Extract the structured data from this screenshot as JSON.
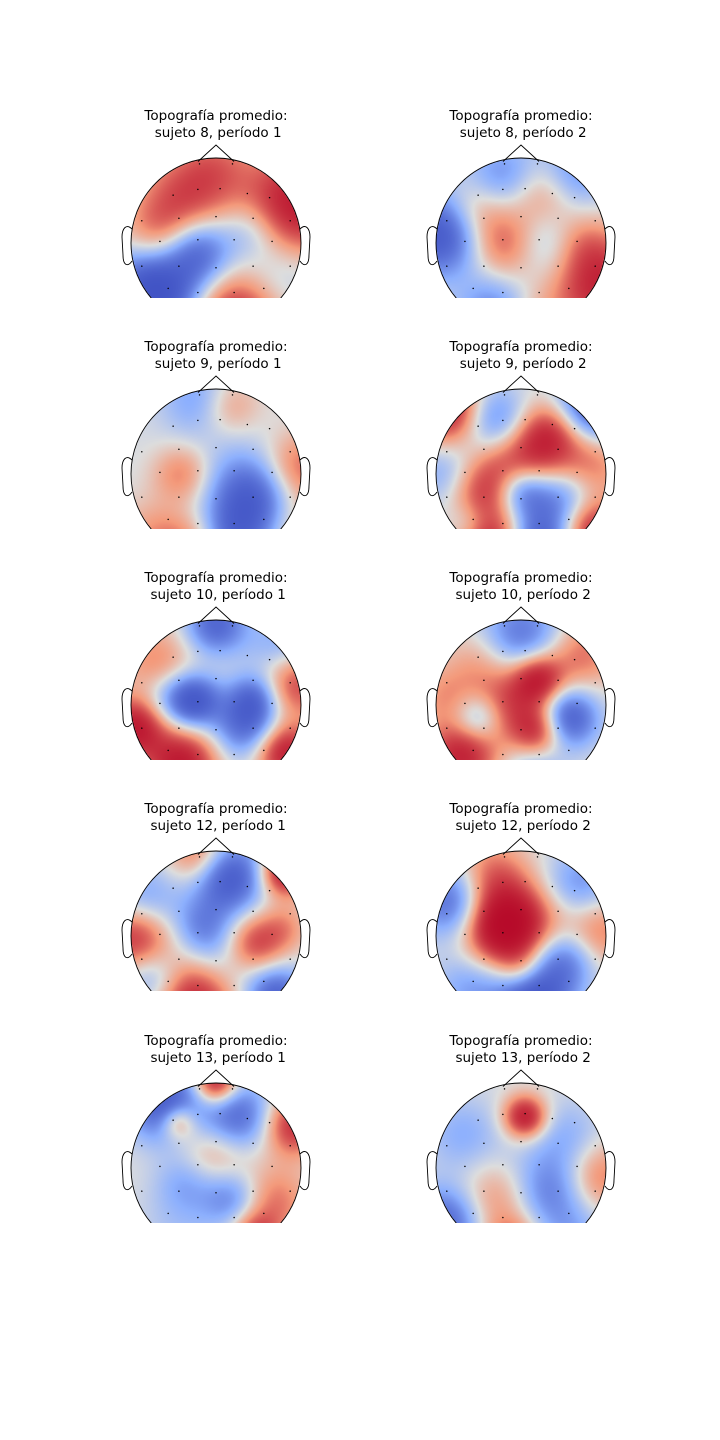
{
  "chart_data": [
    {
      "type": "heatmap",
      "title_line1": "Topografía promedio:",
      "title_line2": "sujeto 8, período 1",
      "blobs": [
        [
          0.95,
          -0.45,
          0.45,
          1.0
        ],
        [
          -0.35,
          -0.55,
          0.38,
          0.6
        ],
        [
          0.0,
          -0.95,
          0.3,
          0.3
        ],
        [
          -0.2,
          0.1,
          0.28,
          -0.8
        ],
        [
          -0.9,
          0.45,
          0.32,
          -0.5
        ],
        [
          -0.6,
          0.65,
          0.35,
          -0.95
        ],
        [
          0.2,
          0.9,
          0.4,
          0.9
        ],
        [
          0.4,
          -0.15,
          0.25,
          -0.35
        ],
        [
          -0.7,
          -0.1,
          0.3,
          0.4
        ],
        [
          0.75,
          0.35,
          0.35,
          -0.3
        ]
      ]
    },
    {
      "type": "heatmap",
      "title_line1": "Topografía promedio:",
      "title_line2": "sujeto 8, período 2",
      "blobs": [
        [
          -0.95,
          -0.1,
          0.35,
          -1.0
        ],
        [
          0.95,
          0.5,
          0.4,
          0.9
        ],
        [
          -0.2,
          0.0,
          0.3,
          0.6
        ],
        [
          0.3,
          -0.6,
          0.3,
          0.5
        ],
        [
          0.6,
          -0.8,
          0.3,
          -0.6
        ],
        [
          -0.2,
          -0.8,
          0.3,
          -0.5
        ],
        [
          0.3,
          0.0,
          0.3,
          -0.4
        ],
        [
          -0.3,
          0.8,
          0.3,
          -0.6
        ],
        [
          0.1,
          0.95,
          0.3,
          0.3
        ],
        [
          -0.55,
          -0.4,
          0.25,
          0.35
        ],
        [
          0.7,
          0.0,
          0.25,
          0.3
        ]
      ]
    },
    {
      "type": "heatmap",
      "title_line1": "Topografía promedio:",
      "title_line2": "sujeto 9, período 1",
      "blobs": [
        [
          0.45,
          0.3,
          0.35,
          -0.9
        ],
        [
          -0.4,
          0.0,
          0.25,
          0.5
        ],
        [
          0.15,
          -0.8,
          0.25,
          0.4
        ],
        [
          0.2,
          0.8,
          0.28,
          -0.6
        ],
        [
          -0.3,
          0.9,
          0.3,
          0.5
        ],
        [
          0.95,
          -0.05,
          0.3,
          0.6
        ],
        [
          -0.2,
          -0.9,
          0.3,
          -0.4
        ],
        [
          0.9,
          0.6,
          0.3,
          0.3
        ],
        [
          0.0,
          0.0,
          0.6,
          -0.15
        ],
        [
          -0.75,
          0.7,
          0.3,
          0.3
        ]
      ]
    },
    {
      "type": "heatmap",
      "title_line1": "Topografía promedio:",
      "title_line2": "sujeto 9, período 2",
      "blobs": [
        [
          -0.85,
          -0.75,
          0.3,
          1.0
        ],
        [
          0.85,
          -0.8,
          0.3,
          -1.0
        ],
        [
          -0.3,
          -0.6,
          0.3,
          -0.9
        ],
        [
          0.0,
          -0.2,
          0.4,
          0.9
        ],
        [
          0.0,
          0.2,
          0.22,
          -0.8
        ],
        [
          0.5,
          0.3,
          0.3,
          -0.8
        ],
        [
          0.8,
          0.65,
          0.28,
          1.0
        ],
        [
          0.2,
          0.85,
          0.3,
          -1.0
        ],
        [
          -0.35,
          0.85,
          0.3,
          1.0
        ],
        [
          -0.5,
          0.2,
          0.3,
          0.6
        ],
        [
          0.8,
          -0.1,
          0.3,
          0.5
        ],
        [
          -0.85,
          0.0,
          0.3,
          -0.5
        ],
        [
          0.35,
          -0.5,
          0.25,
          0.5
        ],
        [
          -0.6,
          0.6,
          0.2,
          -0.4
        ]
      ]
    },
    {
      "type": "heatmap",
      "title_line1": "Topografía promedio:",
      "title_line2": "sujeto 10, período 1",
      "blobs": [
        [
          -0.25,
          -0.05,
          0.22,
          -1.0
        ],
        [
          0.35,
          0.2,
          0.3,
          -0.95
        ],
        [
          -0.4,
          0.7,
          0.3,
          1.0
        ],
        [
          0.8,
          0.55,
          0.25,
          1.0
        ],
        [
          0.9,
          -0.3,
          0.3,
          0.9
        ],
        [
          -0.95,
          0.25,
          0.25,
          1.0
        ],
        [
          0.0,
          -0.95,
          0.25,
          -0.8
        ],
        [
          0.8,
          -0.6,
          0.3,
          -0.6
        ],
        [
          -0.7,
          -0.5,
          0.3,
          0.4
        ],
        [
          0.05,
          0.05,
          0.3,
          0.2
        ],
        [
          0.45,
          -0.1,
          0.2,
          -0.5
        ],
        [
          -0.6,
          -0.05,
          0.25,
          -0.35
        ]
      ]
    },
    {
      "type": "heatmap",
      "title_line1": "Topografía promedio:",
      "title_line2": "sujeto 10, período 2",
      "blobs": [
        [
          0.2,
          -0.3,
          0.22,
          1.0
        ],
        [
          0.2,
          0.3,
          0.22,
          0.85
        ],
        [
          -0.2,
          0.0,
          0.28,
          0.55
        ],
        [
          -0.7,
          0.6,
          0.3,
          0.9
        ],
        [
          0.55,
          0.15,
          0.25,
          -0.95
        ],
        [
          0.0,
          -0.8,
          0.35,
          -0.7
        ],
        [
          -0.5,
          0.15,
          0.2,
          -0.6
        ],
        [
          0.7,
          -0.6,
          0.3,
          0.5
        ],
        [
          -0.45,
          -0.5,
          0.3,
          0.35
        ],
        [
          0.15,
          0.8,
          0.25,
          -0.4
        ],
        [
          -0.9,
          -0.1,
          0.25,
          0.3
        ]
      ]
    },
    {
      "type": "heatmap",
      "title_line1": "Topografía promedio:",
      "title_line2": "sujeto 12, período 1",
      "blobs": [
        [
          0.8,
          -0.75,
          0.2,
          1.0
        ],
        [
          0.15,
          -0.7,
          0.3,
          -1.0
        ],
        [
          -0.95,
          0.0,
          0.3,
          0.85
        ],
        [
          -0.25,
          0.75,
          0.35,
          0.9
        ],
        [
          0.45,
          0.1,
          0.25,
          0.7
        ],
        [
          0.7,
          0.7,
          0.25,
          -0.85
        ],
        [
          -0.15,
          -0.1,
          0.25,
          -0.5
        ],
        [
          -0.85,
          -0.4,
          0.3,
          -0.5
        ],
        [
          -0.75,
          0.5,
          0.25,
          -0.5
        ],
        [
          -0.2,
          -0.95,
          0.25,
          0.6
        ],
        [
          0.8,
          -0.1,
          0.2,
          0.3
        ],
        [
          0.1,
          0.3,
          0.3,
          -0.3
        ]
      ]
    },
    {
      "type": "heatmap",
      "title_line1": "Topografía promedio:",
      "title_line2": "sujeto 12, período 2",
      "blobs": [
        [
          -0.05,
          -0.1,
          0.35,
          1.0
        ],
        [
          -0.3,
          -0.1,
          0.3,
          0.6
        ],
        [
          0.1,
          0.8,
          0.3,
          -0.9
        ],
        [
          -0.8,
          -0.4,
          0.3,
          -0.8
        ],
        [
          -0.35,
          -0.7,
          0.3,
          0.5
        ],
        [
          0.9,
          -0.05,
          0.3,
          0.5
        ],
        [
          0.7,
          -0.6,
          0.3,
          -0.5
        ],
        [
          0.3,
          0.4,
          0.35,
          -0.5
        ],
        [
          -0.6,
          0.6,
          0.3,
          -0.4
        ],
        [
          0.0,
          0.4,
          0.2,
          0.4
        ],
        [
          0.55,
          0.25,
          0.25,
          -0.4
        ]
      ]
    },
    {
      "type": "heatmap",
      "title_line1": "Topografía promedio:",
      "title_line2": "sujeto 13, período 1",
      "blobs": [
        [
          0.0,
          -1.0,
          0.18,
          1.0
        ],
        [
          -0.6,
          -0.75,
          0.3,
          -1.0
        ],
        [
          0.25,
          -0.6,
          0.3,
          -0.8
        ],
        [
          -0.45,
          -0.55,
          0.15,
          0.7
        ],
        [
          0.9,
          -0.5,
          0.25,
          0.8
        ],
        [
          0.0,
          -0.15,
          0.3,
          0.4
        ],
        [
          0.2,
          0.35,
          0.25,
          -0.6
        ],
        [
          -0.35,
          0.15,
          0.25,
          -0.35
        ],
        [
          0.65,
          0.4,
          0.3,
          0.5
        ],
        [
          0.45,
          0.8,
          0.2,
          0.6
        ],
        [
          -0.4,
          0.65,
          0.35,
          -0.2
        ]
      ]
    },
    {
      "type": "heatmap",
      "title_line1": "Topografía promedio:",
      "title_line2": "sujeto 13, período 2",
      "blobs": [
        [
          0.05,
          -0.6,
          0.18,
          1.0
        ],
        [
          -0.9,
          0.65,
          0.3,
          -0.8
        ],
        [
          -0.1,
          0.95,
          0.25,
          0.7
        ],
        [
          0.35,
          0.25,
          0.3,
          -0.5
        ],
        [
          -0.3,
          0.35,
          0.3,
          0.4
        ],
        [
          0.9,
          0.1,
          0.3,
          0.5
        ],
        [
          0.55,
          -0.35,
          0.3,
          -0.3
        ],
        [
          0.6,
          0.8,
          0.3,
          -0.35
        ],
        [
          -0.7,
          -0.4,
          0.3,
          -0.3
        ],
        [
          0.0,
          0.0,
          0.6,
          -0.1
        ]
      ]
    }
  ]
}
